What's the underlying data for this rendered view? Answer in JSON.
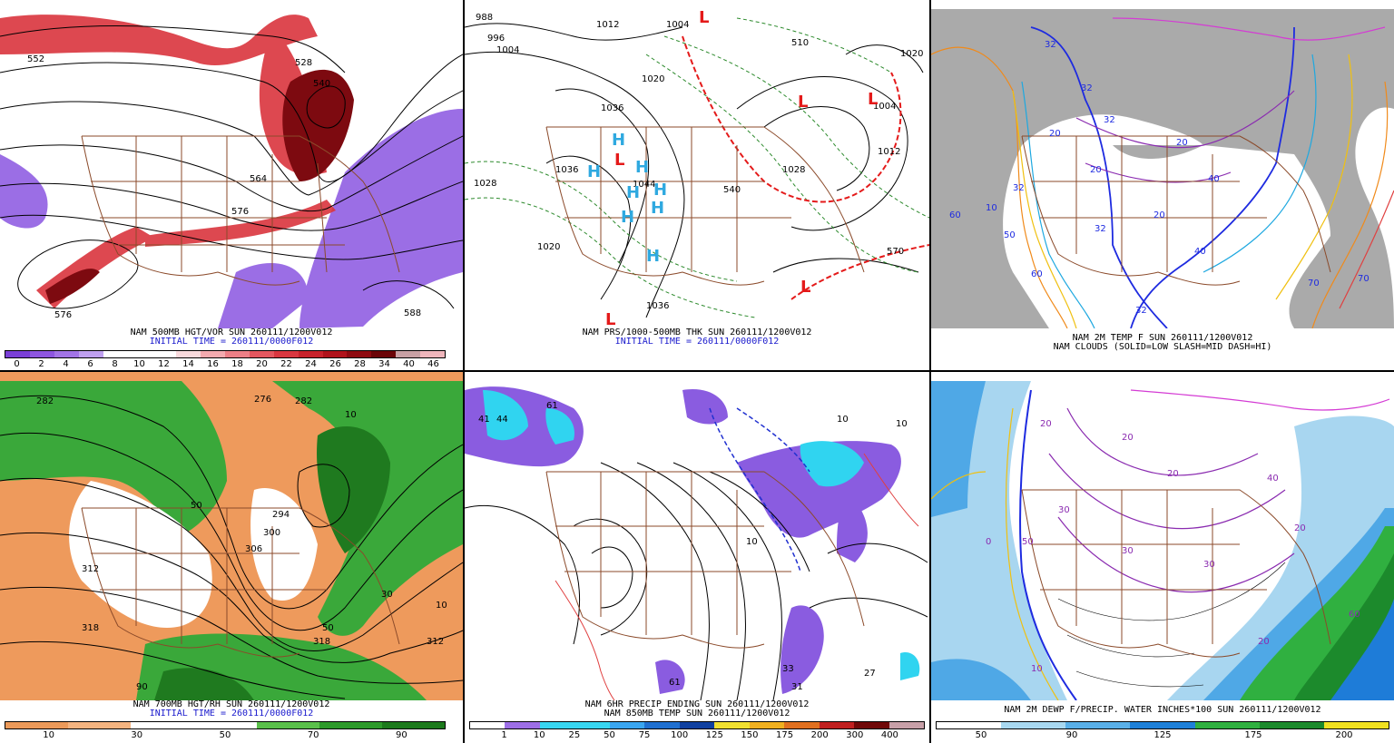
{
  "panels": [
    {
      "id": "p1",
      "caption1": "NAM 500MB HGT/VOR SUN 260111/1200V012",
      "caption2": "INITIAL TIME = 260111/0000F012",
      "scale_labels": [
        "0",
        "2",
        "4",
        "6",
        "8",
        "10",
        "12",
        "14",
        "16",
        "18",
        "20",
        "22",
        "24",
        "26",
        "28",
        "34",
        "40",
        "46"
      ],
      "scale_colors": [
        "#7a3fd6",
        "#8e56e0",
        "#a274e6",
        "#bfa0ef",
        "#ffffff",
        "#ffffff",
        "#ffffff",
        "#f8d9dc",
        "#f3aaaf",
        "#ec7f86",
        "#e4575f",
        "#d93740",
        "#c8222b",
        "#b0131b",
        "#8e0a10",
        "#6b0508",
        "#c8a0a4",
        "#efb6bc"
      ],
      "map_labels": [
        {
          "t": "552",
          "c": "#000"
        },
        {
          "t": "528",
          "c": "#000"
        },
        {
          "t": "576",
          "c": "#000"
        },
        {
          "t": "576",
          "c": "#000"
        },
        {
          "t": "588",
          "c": "#000"
        },
        {
          "t": "564",
          "c": "#000"
        },
        {
          "t": "540",
          "c": "#000"
        }
      ],
      "fill_colors": {
        "purple": "#8a55e0",
        "red": "#d9343d",
        "darkred": "#7d0a10"
      }
    },
    {
      "id": "p2",
      "caption1": "NAM PRS/1000-500MB THK SUN 260111/1200V012",
      "caption2": "INITIAL TIME = 260111/0000F012",
      "map_labels": [
        {
          "t": "988"
        },
        {
          "t": "996"
        },
        {
          "t": "1004"
        },
        {
          "t": "1012"
        },
        {
          "t": "1004"
        },
        {
          "t": "1020"
        },
        {
          "t": "1036"
        },
        {
          "t": "1036"
        },
        {
          "t": "1044"
        },
        {
          "t": "1028"
        },
        {
          "t": "1020"
        },
        {
          "t": "1036"
        },
        {
          "t": "1012"
        },
        {
          "t": "1020"
        },
        {
          "t": "1004"
        },
        {
          "t": "1028"
        },
        {
          "t": "570"
        },
        {
          "t": "540"
        },
        {
          "t": "510"
        }
      ],
      "high_letter": "H",
      "low_letter": "L",
      "colors": {
        "high": "#2fa9e0",
        "low": "#e41a1a",
        "thk_green": "#2c8a2c",
        "thk_red": "#e41a1a"
      }
    },
    {
      "id": "p3",
      "caption1": "NAM 2M TEMP F SUN 260111/1200V012",
      "caption2": "NAM CLOUDS (SOLID=LOW SLASH=MID DASH=HI)",
      "map_labels": [
        {
          "t": "32"
        },
        {
          "t": "32"
        },
        {
          "t": "32"
        },
        {
          "t": "20"
        },
        {
          "t": "20"
        },
        {
          "t": "10"
        },
        {
          "t": "20"
        },
        {
          "t": "32"
        },
        {
          "t": "32"
        },
        {
          "t": "40"
        },
        {
          "t": "50"
        },
        {
          "t": "60"
        },
        {
          "t": "70"
        },
        {
          "t": "32"
        },
        {
          "t": "20"
        },
        {
          "t": "40"
        },
        {
          "t": "70"
        },
        {
          "t": "60"
        }
      ],
      "colors": {
        "cloud": "#aaaaaa",
        "blue": "#1e2be0",
        "lblue": "#1ea8e0",
        "purple": "#8a2bb0",
        "magenta": "#d43bd4",
        "orange": "#f08a1a",
        "red": "#e04040",
        "yellow": "#f0c010"
      }
    },
    {
      "id": "p4",
      "caption1": "NAM 700MB HGT/RH SUN 260111/1200V012",
      "caption2": "INITIAL TIME = 260111/0000F012",
      "scale_labels": [
        "10",
        "30",
        "50",
        "70",
        "90"
      ],
      "scale_colors": [
        "#ec9a5a",
        "#f5b480",
        "#ffffff",
        "#ffffff",
        "#5ac04a",
        "#2d9a2a",
        "#1c7a1c"
      ],
      "map_labels": [
        {
          "t": "282"
        },
        {
          "t": "276"
        },
        {
          "t": "282"
        },
        {
          "t": "10"
        },
        {
          "t": "50"
        },
        {
          "t": "300"
        },
        {
          "t": "306"
        },
        {
          "t": "312"
        },
        {
          "t": "318"
        },
        {
          "t": "312"
        },
        {
          "t": "318"
        },
        {
          "t": "50"
        },
        {
          "t": "10"
        },
        {
          "t": "90"
        },
        {
          "t": "30"
        },
        {
          "t": "294"
        }
      ],
      "colors": {
        "dry": "#ee9a5c",
        "moist": "#3aa83a",
        "darkmoist": "#1f7a1f"
      }
    },
    {
      "id": "p5",
      "caption1": "NAM 6HR PRECIP ENDING SUN 260111/1200V012",
      "caption2": "NAM 850MB TEMP SUN 260111/1200V012",
      "scale_labels": [
        "1",
        "10",
        "25",
        "50",
        "75",
        "100",
        "125",
        "150",
        "175",
        "200",
        "300",
        "400"
      ],
      "scale_colors": [
        "#ffffff",
        "#9d6fe6",
        "#38d6f0",
        "#38d6f0",
        "#3aa6f0",
        "#2070d0",
        "#1040a0",
        "#f0e030",
        "#f0b020",
        "#e07020",
        "#c02020",
        "#700808",
        "#c8a0a8"
      ],
      "map_labels": [
        {
          "t": "41"
        },
        {
          "t": "44"
        },
        {
          "t": "61"
        },
        {
          "t": "10"
        },
        {
          "t": "10"
        },
        {
          "t": "27"
        },
        {
          "t": "61"
        },
        {
          "t": "33"
        },
        {
          "t": "31"
        },
        {
          "t": "10"
        }
      ],
      "colors": {
        "precip_purple": "#8a5ce0",
        "precip_cyan": "#30d4f0",
        "blue_dash": "#2030d0",
        "red_line": "#e04040"
      }
    },
    {
      "id": "p6",
      "caption1": "NAM 2M DEWP F/PRECIP. WATER INCHES*100 SUN 260111/1200V012",
      "caption2": "",
      "scale_labels": [
        "50",
        "90",
        "125",
        "175",
        "200"
      ],
      "scale_colors": [
        "#ffffff",
        "#a8d8f0",
        "#5ab0e8",
        "#1e80d8",
        "#30b040",
        "#1c8a2c",
        "#f0e020"
      ],
      "map_labels": [
        {
          "t": "20"
        },
        {
          "t": "20"
        },
        {
          "t": "20"
        },
        {
          "t": "30"
        },
        {
          "t": "30"
        },
        {
          "t": "30"
        },
        {
          "t": "40"
        },
        {
          "t": "10"
        },
        {
          "t": "20"
        },
        {
          "t": "60"
        },
        {
          "t": "50"
        },
        {
          "t": "20"
        },
        {
          "t": "0"
        }
      ],
      "colors": {
        "pw_light": "#a8d6f0",
        "pw_mid": "#4fa8e6",
        "pw_dark": "#1e7cd8",
        "pw_green": "#30b040",
        "purple": "#8a2bb0",
        "blue": "#1e2be0",
        "yellow": "#f0c010"
      }
    }
  ]
}
